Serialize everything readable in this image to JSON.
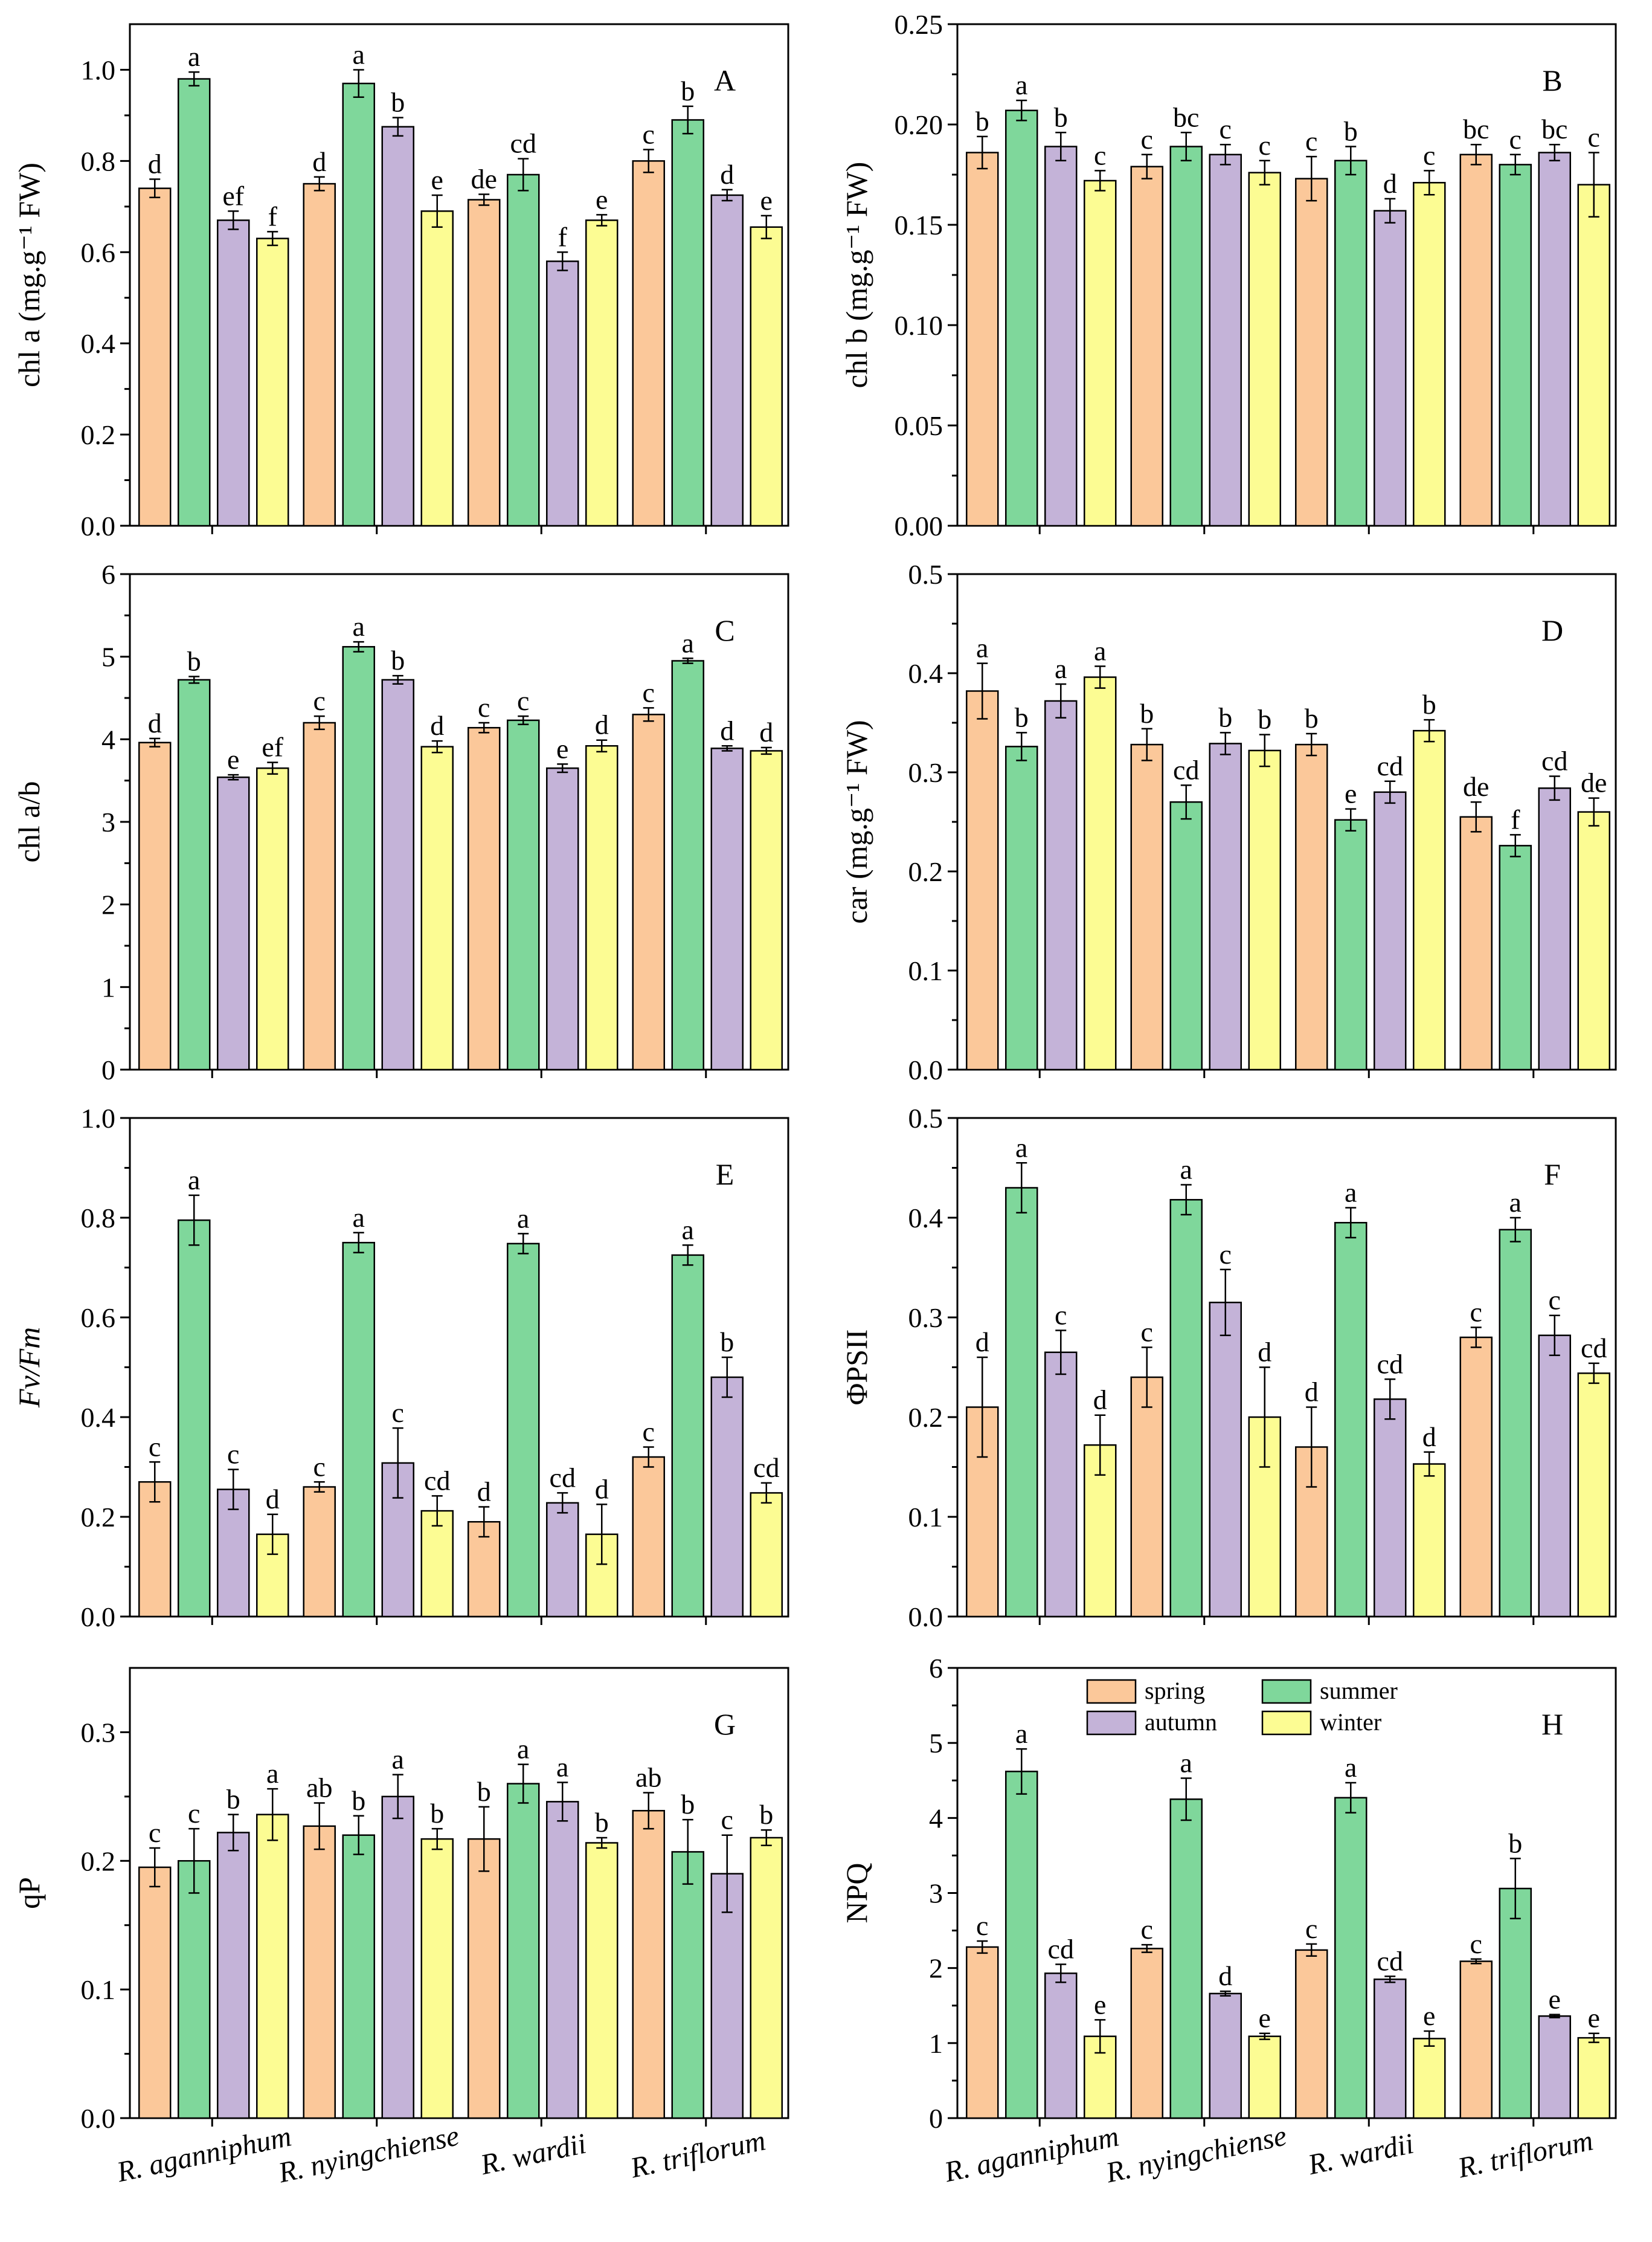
{
  "colors": {
    "spring": "#fbc89a",
    "summer": "#7fd79b",
    "autumn": "#c4b3d8",
    "winter": "#fcfc93"
  },
  "legend": {
    "spring": "spring",
    "summer": "summer",
    "autumn": "autumn",
    "winter": "winter"
  },
  "chart_data": [
    {
      "type": "bar",
      "panel": "A",
      "ylabel": "chl a (mg.g⁻¹ FW)",
      "ylim": [
        0,
        1.1
      ],
      "yticks": [
        "0.0",
        "0.2",
        "0.4",
        "0.6",
        "0.8",
        "1.0"
      ],
      "categories": [
        "R. aganniphum",
        "R. nyingchiense",
        "R. wardii",
        "R. triflorum"
      ],
      "series": [
        {
          "name": "spring",
          "values": [
            0.74,
            0.75,
            0.715,
            0.8
          ],
          "errors": [
            0.02,
            0.015,
            0.012,
            0.025
          ],
          "letters": [
            "d",
            "d",
            "de",
            "c"
          ]
        },
        {
          "name": "summer",
          "values": [
            0.98,
            0.97,
            0.77,
            0.89
          ],
          "errors": [
            0.015,
            0.03,
            0.035,
            0.03
          ],
          "letters": [
            "a",
            "a",
            "cd",
            "b"
          ]
        },
        {
          "name": "autumn",
          "values": [
            0.67,
            0.875,
            0.58,
            0.725
          ],
          "errors": [
            0.02,
            0.02,
            0.02,
            0.012
          ],
          "letters": [
            "ef",
            "b",
            "f",
            "d"
          ]
        },
        {
          "name": "winter",
          "values": [
            0.63,
            0.69,
            0.67,
            0.655
          ],
          "errors": [
            0.015,
            0.035,
            0.012,
            0.025
          ],
          "letters": [
            "f",
            "e",
            "e",
            "e"
          ]
        }
      ]
    },
    {
      "type": "bar",
      "panel": "B",
      "ylabel": "chl b (mg.g⁻¹ FW)",
      "ylim": [
        0,
        0.25
      ],
      "yticks": [
        "0.00",
        "0.05",
        "0.10",
        "0.15",
        "0.20",
        "0.25"
      ],
      "categories": [
        "R. aganniphum",
        "R. nyingchiense",
        "R. wardii",
        "R. triflorum"
      ],
      "series": [
        {
          "name": "spring",
          "values": [
            0.186,
            0.179,
            0.173,
            0.185
          ],
          "errors": [
            0.008,
            0.006,
            0.011,
            0.005
          ],
          "letters": [
            "b",
            "c",
            "c",
            "bc"
          ]
        },
        {
          "name": "summer",
          "values": [
            0.207,
            0.189,
            0.182,
            0.18
          ],
          "errors": [
            0.005,
            0.007,
            0.007,
            0.005
          ],
          "letters": [
            "a",
            "bc",
            "b",
            "c"
          ]
        },
        {
          "name": "autumn",
          "values": [
            0.189,
            0.185,
            0.157,
            0.186
          ],
          "errors": [
            0.007,
            0.005,
            0.006,
            0.004
          ],
          "letters": [
            "b",
            "c",
            "d",
            "bc"
          ]
        },
        {
          "name": "winter",
          "values": [
            0.172,
            0.176,
            0.171,
            0.17
          ],
          "errors": [
            0.005,
            0.006,
            0.006,
            0.016
          ],
          "letters": [
            "c",
            "c",
            "c",
            "c"
          ]
        }
      ]
    },
    {
      "type": "bar",
      "panel": "C",
      "ylabel": "chl a/b",
      "ylim": [
        0,
        6
      ],
      "yticks": [
        "0",
        "1",
        "2",
        "3",
        "4",
        "5",
        "6"
      ],
      "categories": [
        "R. aganniphum",
        "R. nyingchiense",
        "R. wardii",
        "R. triflorum"
      ],
      "series": [
        {
          "name": "spring",
          "values": [
            3.96,
            4.2,
            4.14,
            4.3
          ],
          "errors": [
            0.05,
            0.08,
            0.06,
            0.08
          ],
          "letters": [
            "d",
            "c",
            "c",
            "c"
          ]
        },
        {
          "name": "summer",
          "values": [
            4.72,
            5.12,
            4.23,
            4.95
          ],
          "errors": [
            0.04,
            0.06,
            0.05,
            0.03
          ],
          "letters": [
            "b",
            "a",
            "c",
            "a"
          ]
        },
        {
          "name": "autumn",
          "values": [
            3.54,
            4.72,
            3.65,
            3.89
          ],
          "errors": [
            0.03,
            0.05,
            0.05,
            0.03
          ],
          "letters": [
            "e",
            "b",
            "e",
            "d"
          ]
        },
        {
          "name": "winter",
          "values": [
            3.65,
            3.91,
            3.92,
            3.86
          ],
          "errors": [
            0.07,
            0.07,
            0.07,
            0.04
          ],
          "letters": [
            "ef",
            "d",
            "d",
            "d"
          ]
        }
      ]
    },
    {
      "type": "bar",
      "panel": "D",
      "ylabel": "car (mg.g⁻¹ FW)",
      "ylim": [
        0,
        0.5
      ],
      "yticks": [
        "0.0",
        "0.1",
        "0.2",
        "0.3",
        "0.4",
        "0.5"
      ],
      "categories": [
        "R. aganniphum",
        "R. nyingchiense",
        "R. wardii",
        "R. triflorum"
      ],
      "series": [
        {
          "name": "spring",
          "values": [
            0.382,
            0.328,
            0.328,
            0.255
          ],
          "errors": [
            0.028,
            0.016,
            0.011,
            0.015
          ],
          "letters": [
            "a",
            "b",
            "b",
            "de"
          ]
        },
        {
          "name": "summer",
          "values": [
            0.326,
            0.27,
            0.252,
            0.226
          ],
          "errors": [
            0.014,
            0.017,
            0.011,
            0.011
          ],
          "letters": [
            "b",
            "cd",
            "e",
            "f"
          ]
        },
        {
          "name": "autumn",
          "values": [
            0.372,
            0.329,
            0.28,
            0.284
          ],
          "errors": [
            0.017,
            0.011,
            0.011,
            0.012
          ],
          "letters": [
            "a",
            "b",
            "cd",
            "cd"
          ]
        },
        {
          "name": "winter",
          "values": [
            0.396,
            0.322,
            0.342,
            0.26
          ],
          "errors": [
            0.011,
            0.016,
            0.011,
            0.014
          ],
          "letters": [
            "a",
            "b",
            "b",
            "de"
          ]
        }
      ]
    },
    {
      "type": "bar",
      "panel": "E",
      "ylabel": "Fv/Fm",
      "ylabel_italic": true,
      "ylim": [
        0,
        1.0
      ],
      "yticks": [
        "0.0",
        "0.2",
        "0.4",
        "0.6",
        "0.8",
        "1.0"
      ],
      "categories": [
        "R. aganniphum",
        "R. nyingchiense",
        "R. wardii",
        "R. triflorum"
      ],
      "series": [
        {
          "name": "spring",
          "values": [
            0.27,
            0.26,
            0.19,
            0.32
          ],
          "errors": [
            0.04,
            0.01,
            0.03,
            0.02
          ],
          "letters": [
            "c",
            "c",
            "d",
            "c"
          ]
        },
        {
          "name": "summer",
          "values": [
            0.795,
            0.75,
            0.748,
            0.725
          ],
          "errors": [
            0.05,
            0.02,
            0.02,
            0.02
          ],
          "letters": [
            "a",
            "a",
            "a",
            "a"
          ]
        },
        {
          "name": "autumn",
          "values": [
            0.255,
            0.308,
            0.228,
            0.48
          ],
          "errors": [
            0.04,
            0.07,
            0.02,
            0.04
          ],
          "letters": [
            "c",
            "c",
            "cd",
            "b"
          ]
        },
        {
          "name": "winter",
          "values": [
            0.165,
            0.212,
            0.165,
            0.248
          ],
          "errors": [
            0.04,
            0.03,
            0.06,
            0.02
          ],
          "letters": [
            "d",
            "cd",
            "d",
            "cd"
          ]
        }
      ]
    },
    {
      "type": "bar",
      "panel": "F",
      "ylabel": "ΦPSII",
      "ylim": [
        0,
        0.5
      ],
      "yticks": [
        "0.0",
        "0.1",
        "0.2",
        "0.3",
        "0.4",
        "0.5"
      ],
      "categories": [
        "R. aganniphum",
        "R. nyingchiense",
        "R. wardii",
        "R. triflorum"
      ],
      "series": [
        {
          "name": "spring",
          "values": [
            0.21,
            0.24,
            0.17,
            0.28
          ],
          "errors": [
            0.05,
            0.03,
            0.04,
            0.01
          ],
          "letters": [
            "d",
            "c",
            "d",
            "c"
          ]
        },
        {
          "name": "summer",
          "values": [
            0.43,
            0.418,
            0.395,
            0.388
          ],
          "errors": [
            0.025,
            0.015,
            0.015,
            0.012
          ],
          "letters": [
            "a",
            "a",
            "a",
            "a"
          ]
        },
        {
          "name": "autumn",
          "values": [
            0.265,
            0.315,
            0.218,
            0.282
          ],
          "errors": [
            0.022,
            0.033,
            0.02,
            0.02
          ],
          "letters": [
            "c",
            "c",
            "cd",
            "c"
          ]
        },
        {
          "name": "winter",
          "values": [
            0.172,
            0.2,
            0.153,
            0.244
          ],
          "errors": [
            0.03,
            0.05,
            0.012,
            0.01
          ],
          "letters": [
            "d",
            "d",
            "d",
            "cd"
          ]
        }
      ]
    },
    {
      "type": "bar",
      "panel": "G",
      "ylabel": "qP",
      "ylim": [
        0,
        0.35
      ],
      "yticks": [
        "0.0",
        "0.1",
        "0.2",
        "0.3"
      ],
      "categories": [
        "R. aganniphum",
        "R. nyingchiense",
        "R. wardii",
        "R. triflorum"
      ],
      "series": [
        {
          "name": "spring",
          "values": [
            0.195,
            0.227,
            0.217,
            0.239
          ],
          "errors": [
            0.015,
            0.018,
            0.025,
            0.014
          ],
          "letters": [
            "c",
            "ab",
            "b",
            "ab"
          ]
        },
        {
          "name": "summer",
          "values": [
            0.2,
            0.22,
            0.26,
            0.207
          ],
          "errors": [
            0.025,
            0.015,
            0.015,
            0.025
          ],
          "letters": [
            "c",
            "b",
            "a",
            "b"
          ]
        },
        {
          "name": "autumn",
          "values": [
            0.222,
            0.25,
            0.246,
            0.19
          ],
          "errors": [
            0.014,
            0.017,
            0.015,
            0.03
          ],
          "letters": [
            "b",
            "a",
            "a",
            "c"
          ]
        },
        {
          "name": "winter",
          "values": [
            0.236,
            0.217,
            0.214,
            0.218
          ],
          "errors": [
            0.02,
            0.008,
            0.004,
            0.006
          ],
          "letters": [
            "a",
            "b",
            "b",
            "b"
          ]
        }
      ]
    },
    {
      "type": "bar",
      "panel": "H",
      "ylabel": "NPQ",
      "ylim": [
        0,
        6
      ],
      "yticks": [
        "0",
        "1",
        "2",
        "3",
        "4",
        "5",
        "6"
      ],
      "categories": [
        "R. aganniphum",
        "R. nyingchiense",
        "R. wardii",
        "R. triflorum"
      ],
      "legend_position": "top",
      "series": [
        {
          "name": "spring",
          "values": [
            2.28,
            2.26,
            2.24,
            2.09
          ],
          "errors": [
            0.08,
            0.05,
            0.08,
            0.03
          ],
          "letters": [
            "c",
            "c",
            "c",
            "c"
          ]
        },
        {
          "name": "summer",
          "values": [
            4.62,
            4.25,
            4.27,
            3.06
          ],
          "errors": [
            0.3,
            0.28,
            0.2,
            0.4
          ],
          "letters": [
            "a",
            "a",
            "a",
            "b"
          ]
        },
        {
          "name": "autumn",
          "values": [
            1.93,
            1.66,
            1.85,
            1.36
          ],
          "errors": [
            0.12,
            0.03,
            0.04,
            0.02
          ],
          "letters": [
            "cd",
            "d",
            "cd",
            "e"
          ]
        },
        {
          "name": "winter",
          "values": [
            1.09,
            1.09,
            1.06,
            1.07
          ],
          "errors": [
            0.22,
            0.04,
            0.1,
            0.06
          ],
          "letters": [
            "e",
            "e",
            "e",
            "e"
          ]
        }
      ]
    }
  ]
}
